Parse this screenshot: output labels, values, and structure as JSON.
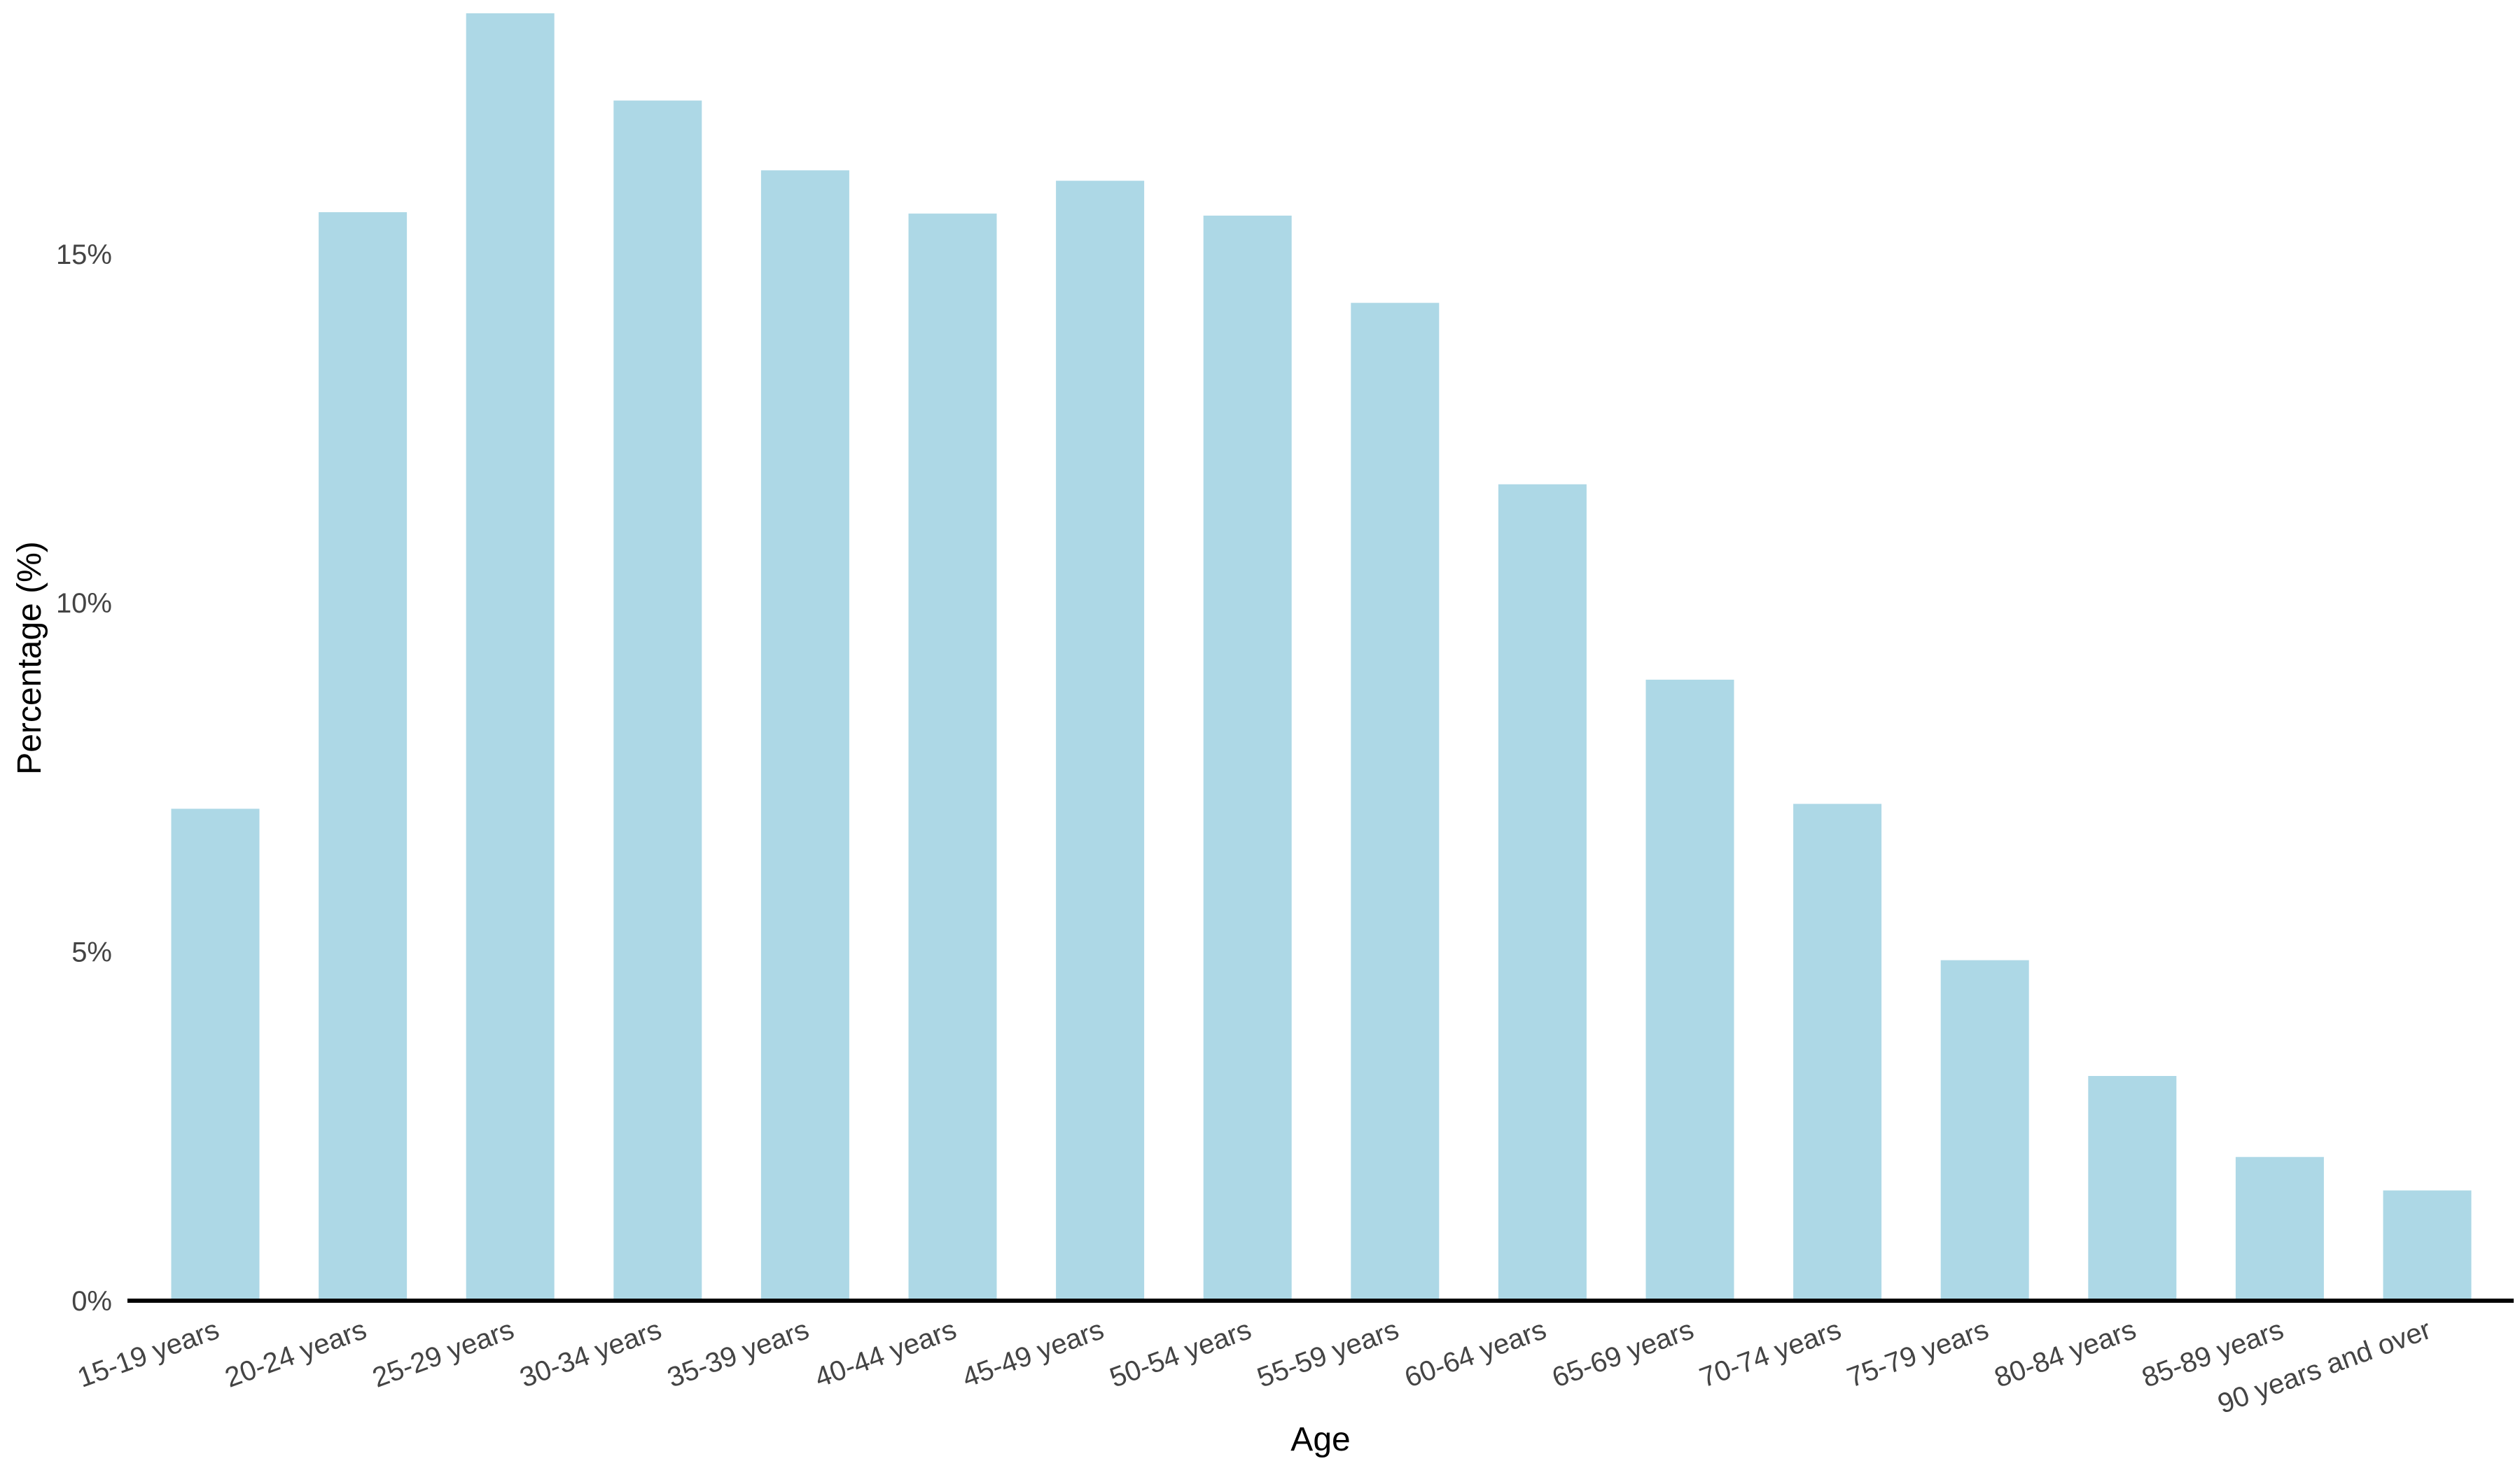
{
  "chart_data": {
    "type": "bar",
    "title": "",
    "xlabel": "Age",
    "ylabel": "Percentage (%)",
    "categories": [
      "15-19 years",
      "20-24 years",
      "25-29 years",
      "30-34 years",
      "35-39 years",
      "40-44 years",
      "45-49 years",
      "50-54 years",
      "55-59 years",
      "60-64 years",
      "65-69 years",
      "70-74 years",
      "75-79 years",
      "80-84 years",
      "85-89 years",
      "90 years and over"
    ],
    "values": [
      7.05,
      15.6,
      18.45,
      17.2,
      16.2,
      15.58,
      16.05,
      15.55,
      14.3,
      11.7,
      8.9,
      7.12,
      4.88,
      3.22,
      2.06,
      1.58
    ],
    "yticks": [
      "0%",
      "5%",
      "10%",
      "15%"
    ],
    "ytick_values": [
      0,
      5,
      10,
      15
    ],
    "ylim": [
      0,
      18.5
    ],
    "grid": false,
    "legend": false,
    "bar_color": "#add8e6",
    "axis_line_color": "#000000"
  }
}
